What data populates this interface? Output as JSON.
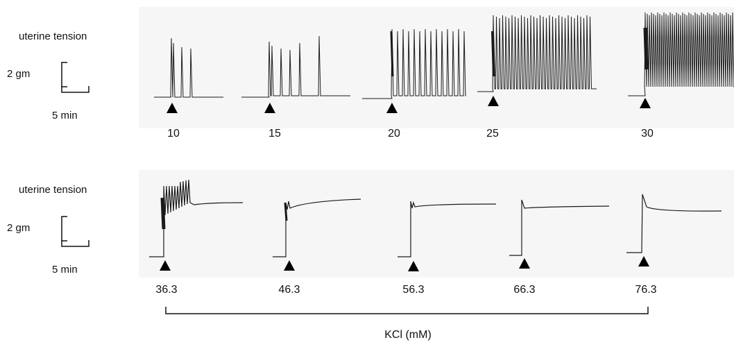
{
  "rows": [
    {
      "tension_label": "uterine tension",
      "scale_y_label": "2 gm",
      "scale_x_label": "5 min",
      "concentrations": [
        "10",
        "15",
        "20",
        "25",
        "30"
      ]
    },
    {
      "tension_label": "uterine tension",
      "scale_y_label": "2 gm",
      "scale_x_label": "5 min",
      "concentrations": [
        "36.3",
        "46.3",
        "56.3",
        "66.3",
        "76.3"
      ]
    }
  ],
  "axis_label": "KCl (mM)",
  "colors": {
    "trace": "#1a1a1a",
    "marker": "#000000"
  }
}
